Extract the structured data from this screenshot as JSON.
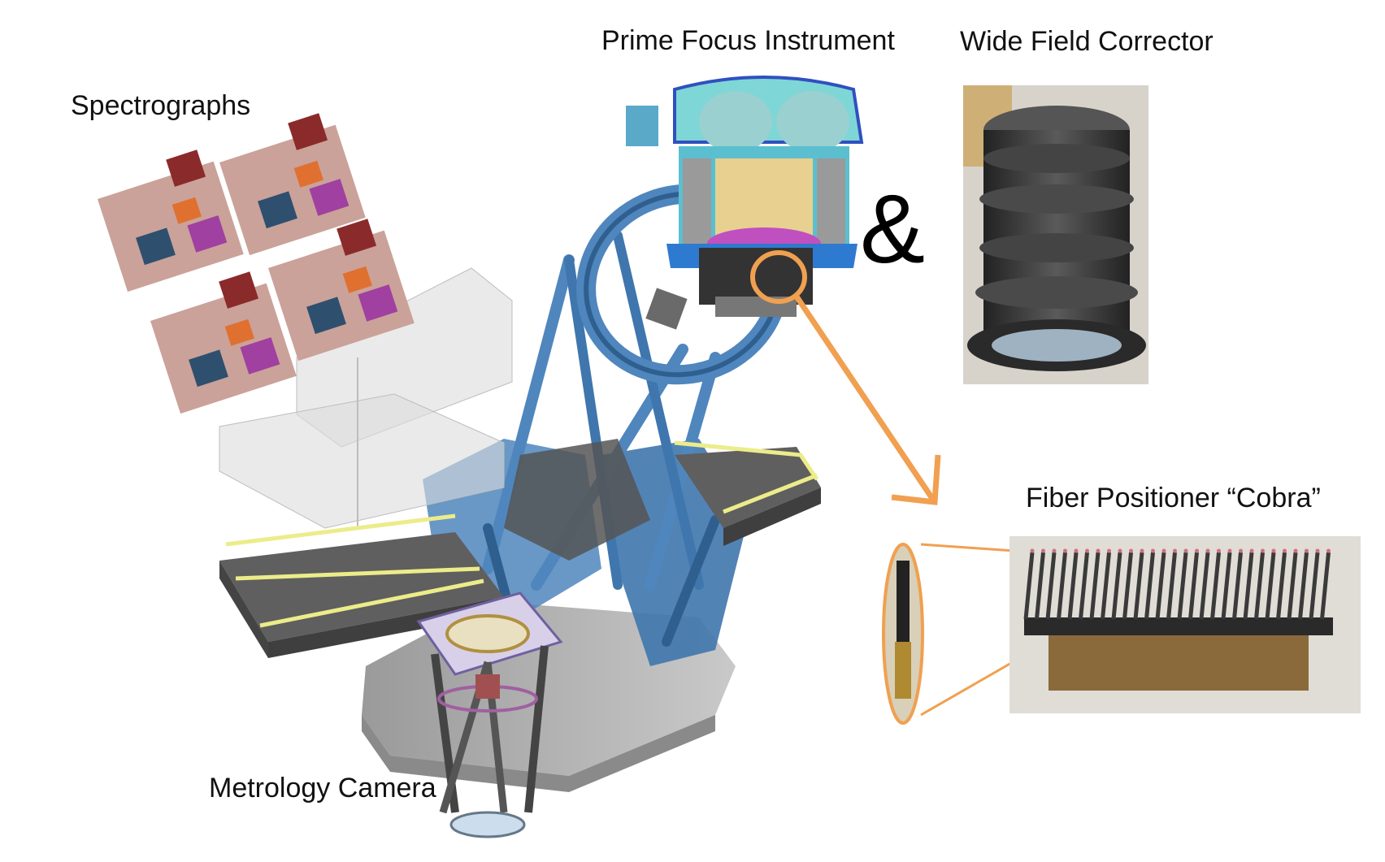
{
  "labels": {
    "spectrographs": "Spectrographs",
    "prime_focus": "Prime Focus Instrument",
    "wide_field": "Wide Field Corrector",
    "fiber_positioner": "Fiber Positioner “Cobra”",
    "metrology": "Metrology Camera",
    "ampersand": "&"
  },
  "colors": {
    "telescope_blue": "#4f86bd",
    "telescope_dark": "#2f5f8f",
    "platform_gray": "#5f5f5f",
    "railing_yellow": "#ecec8a",
    "callout_orange": "#f0a050",
    "spectrograph_pink": "#caa299",
    "corrector_dark": "#3a3a3a"
  }
}
